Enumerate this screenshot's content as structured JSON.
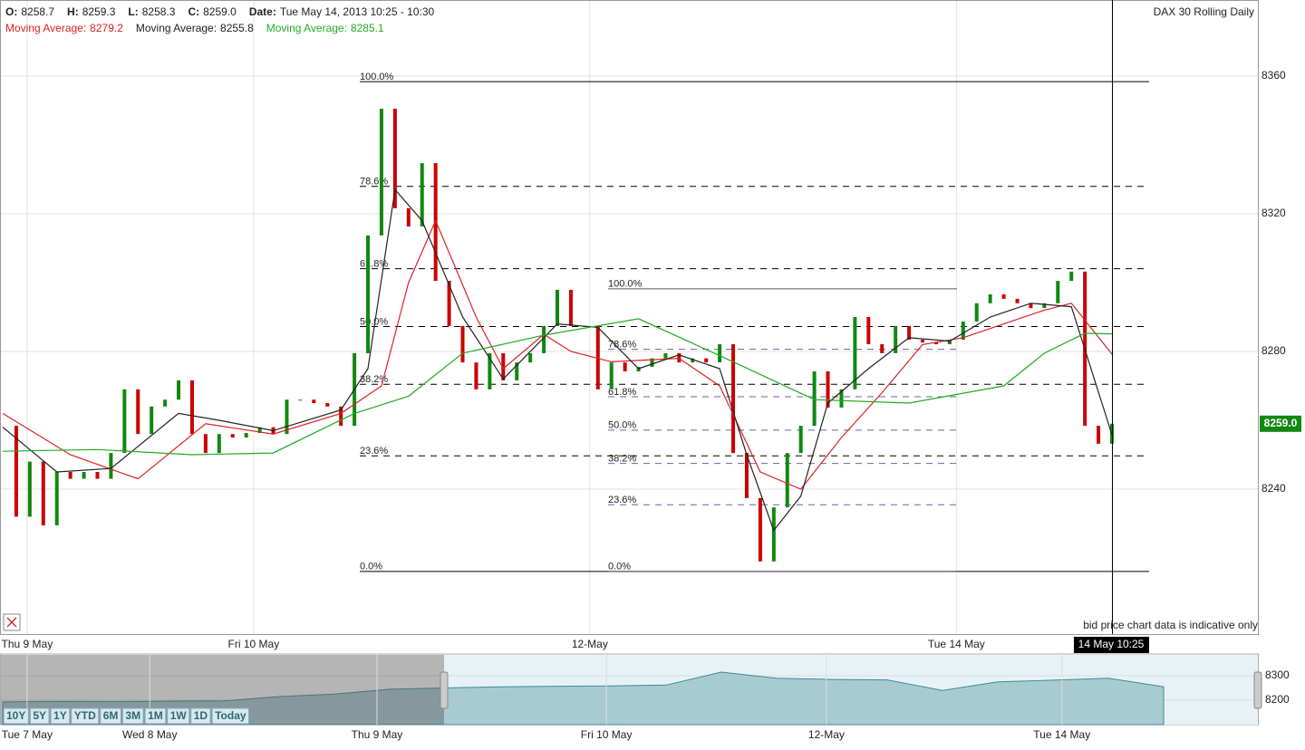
{
  "chart_data": {
    "type": "candles",
    "title": "DAX 30 Rolling Daily",
    "ohlc": [
      {
        "label": "O:",
        "value": "8258.7"
      },
      {
        "label": "H:",
        "value": "8259.3"
      },
      {
        "label": "L:",
        "value": "8258.3"
      },
      {
        "label": "C:",
        "value": "8259.0"
      },
      {
        "label": "Date:",
        "value": "Tue May 14, 2013 10:25 - 10:30"
      }
    ],
    "ylim": [
      8197.9,
      8382.1
    ],
    "yticks": [
      8240,
      8280,
      8320,
      8360
    ],
    "xlim": [
      0,
      82
    ],
    "xticks": [
      {
        "value": 1.8,
        "label": "Thu 9 May"
      },
      {
        "value": 18.55,
        "label": "Fri 10 May"
      },
      {
        "value": 43.4,
        "label": "12-May"
      },
      {
        "value": 70.5,
        "label": "Tue 14 May"
      }
    ],
    "grid": true,
    "price": {
      "up_color": "#118811",
      "down_color": "#cc0000",
      "last_label": "8259.0",
      "values": [
        8258.4,
        8232,
        8248,
        8229.5,
        8245,
        8243,
        8245,
        8243,
        8250.5,
        8269,
        8256,
        8264,
        8266,
        8271.6,
        8256,
        8250.5,
        8256,
        8255,
        8256.3,
        8258,
        8256,
        8266,
        8266,
        8265,
        8264,
        8258.4,
        8279.5,
        8313.7,
        8350.5,
        8321.6,
        8316.3,
        8334.7,
        8300.5,
        8287.4,
        8276.8,
        8269,
        8279.5,
        8271.6,
        8276.8,
        8279.5,
        8287.4,
        8297.9,
        8287.4,
        8287.4,
        8269,
        8276.8,
        8274.2,
        8275.5,
        8278,
        8279.5,
        8276.8,
        8278,
        8276.8,
        8282.1,
        8250.5,
        8237.4,
        8219,
        8234.7,
        8250.5,
        8258.4,
        8274.2,
        8263.7,
        8269,
        8290,
        8282.1,
        8279.5,
        8287.4,
        8283.4,
        8282.6,
        8282.1,
        8283.4,
        8288.7,
        8294,
        8296.6,
        8295.3,
        8294,
        8292.6,
        8294,
        8300.5,
        8303.2,
        8258.4,
        8253.2,
        8259.0
      ]
    },
    "series": [
      {
        "name": "Moving Average:",
        "latest": "8279.2",
        "color": "#dd2222",
        "x": [
          0,
          5,
          10,
          15,
          20,
          25,
          28,
          30,
          32,
          35,
          37,
          40,
          42,
          45,
          50,
          53,
          56,
          59,
          62,
          65,
          68,
          71,
          74,
          77,
          79,
          82
        ],
        "values": [
          8262,
          8250,
          8243,
          8259,
          8256,
          8262,
          8270,
          8300,
          8318,
          8290,
          8275,
          8285,
          8280,
          8277,
          8278,
          8270,
          8245,
          8240,
          8255,
          8268,
          8282,
          8284,
          8288,
          8292,
          8294,
          8279.2
        ]
      },
      {
        "name": "Moving Average:",
        "latest": "8255.8",
        "color": "#222222",
        "x": [
          0,
          4,
          8,
          13,
          16,
          20,
          25,
          27,
          29,
          31,
          34,
          37,
          41,
          44,
          47,
          50,
          53,
          55,
          57,
          59,
          61,
          64,
          67,
          70,
          73,
          76,
          79,
          82
        ],
        "values": [
          8258,
          8245,
          8246,
          8262,
          8260,
          8257,
          8263,
          8275,
          8327,
          8318,
          8290,
          8272,
          8288,
          8287,
          8275,
          8279,
          8275,
          8250,
          8228,
          8238,
          8265,
          8275,
          8284,
          8283,
          8290,
          8294,
          8293,
          8255.8
        ]
      },
      {
        "name": "Moving Average:",
        "latest": "8285.1",
        "color": "#22aa22",
        "x": [
          0,
          7,
          14,
          20,
          26,
          30,
          34,
          40,
          47,
          54,
          60,
          67,
          74,
          77,
          80,
          82
        ],
        "values": [
          8251,
          8251.5,
          8250,
          8250.5,
          8262,
          8267,
          8279.5,
          8284.7,
          8289.5,
          8277,
          8266,
          8265,
          8270,
          8279.5,
          8285.3,
          8285.1
        ]
      }
    ],
    "fib": [
      {
        "high": 8358.4,
        "low": 8216.1,
        "levels": [
          {
            "value": 100,
            "label": "100.0%"
          },
          {
            "value": 78.6,
            "label": "78.6%"
          },
          {
            "value": 61.8,
            "label": "61.8%"
          },
          {
            "value": 50,
            "label": "50.0%"
          },
          {
            "value": 38.2,
            "label": "38.2%"
          },
          {
            "value": 23.6,
            "label": "23.6%"
          },
          {
            "value": 0,
            "label": "0.0%"
          }
        ]
      },
      {
        "high": 8298.2,
        "low": 8216.1,
        "levels": [
          {
            "value": 100,
            "label": "100.0%"
          },
          {
            "value": 78.6,
            "label": "78.6%"
          },
          {
            "value": 61.8,
            "label": "61.8%"
          },
          {
            "value": 50,
            "label": "50.0%"
          },
          {
            "value": 38.2,
            "label": "38.2%"
          },
          {
            "value": 23.6,
            "label": "23.6%"
          },
          {
            "value": 0,
            "label": "0.0%"
          }
        ]
      }
    ],
    "cursor_label": "14 May 10:25",
    "note": "bid price chart data is indicative only",
    "navigator": {
      "ylim": [
        8100,
        8388.9
      ],
      "yticks": [
        8200,
        8300
      ],
      "xlim": [
        0,
        21
      ],
      "xticks": [
        {
          "value": 0.44,
          "label": "Tue 7 May"
        },
        {
          "value": 2.66,
          "label": "Wed 8 May"
        },
        {
          "value": 6.77,
          "label": "Thu 9 May"
        },
        {
          "value": 10.92,
          "label": "Fri 10 May"
        },
        {
          "value": 14.9,
          "label": "12-May"
        },
        {
          "value": 19.16,
          "label": "Tue 14 May"
        }
      ],
      "values": [
        8193,
        8195,
        8194,
        8196,
        8197,
        8215,
        8225,
        8245,
        8250,
        8255,
        8257,
        8258,
        8262,
        8315,
        8290,
        8285,
        8283,
        8240,
        8275,
        8282,
        8290,
        8255
      ]
    },
    "buttons": [
      "10Y",
      "5Y",
      "1Y",
      "YTD",
      "6M",
      "3M",
      "1M",
      "1W",
      "1D",
      "Today"
    ]
  }
}
